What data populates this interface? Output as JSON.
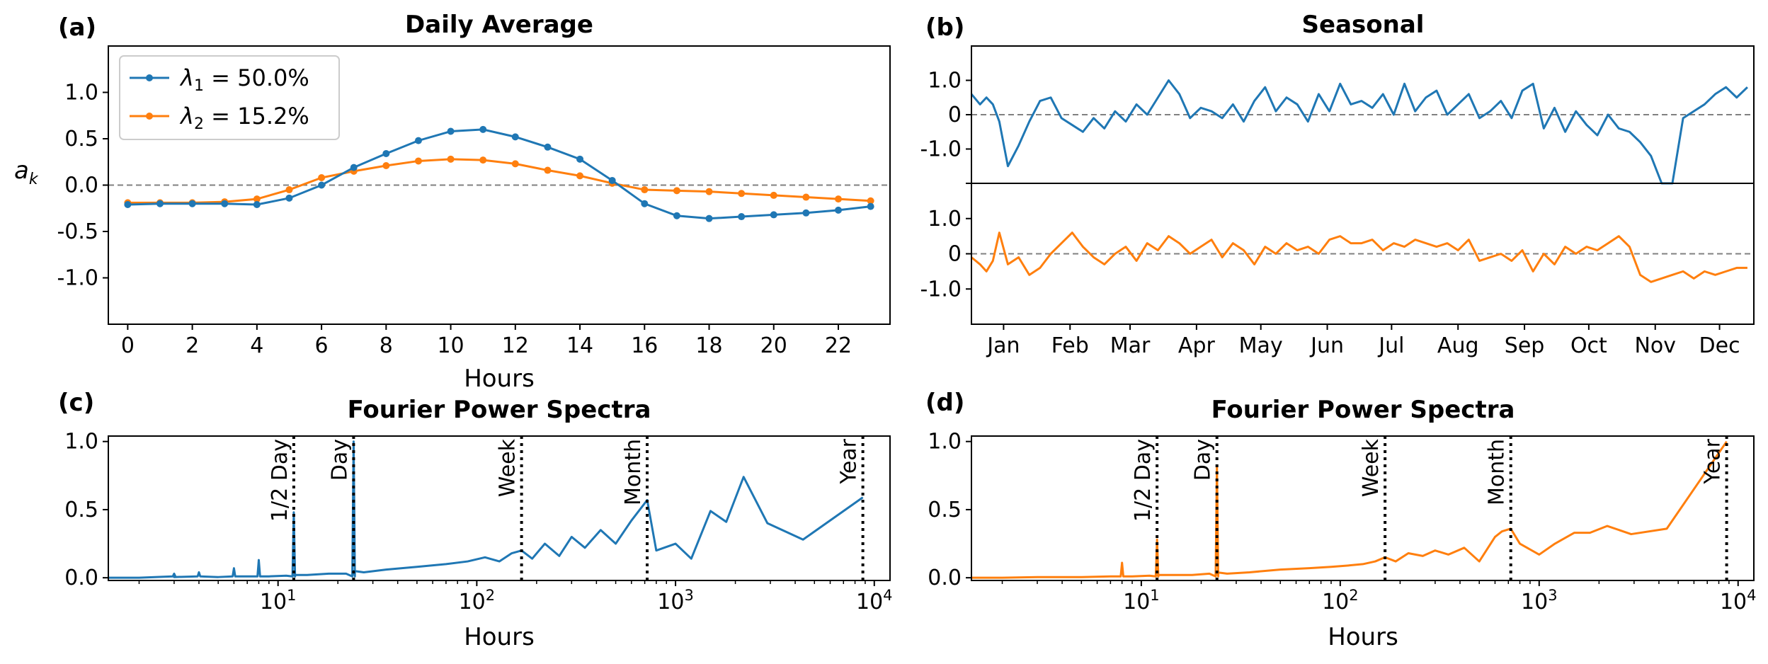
{
  "colors": {
    "c1": "#1f77b4",
    "c2": "#ff7f0e",
    "zero": "#808080"
  },
  "chart_data": [
    {
      "panel": "(a)",
      "type": "line",
      "title": "Daily Average",
      "xlabel": "Hours",
      "ylabel": "a_k",
      "ylabel_main": "a",
      "ylabel_sub": "k",
      "xlim": [
        -0.6,
        23.6
      ],
      "ylim": [
        -1.5,
        1.5
      ],
      "xticks": [
        0,
        2,
        4,
        6,
        8,
        10,
        12,
        14,
        16,
        18,
        20,
        22
      ],
      "xtick_labels": [
        "0",
        "2",
        "4",
        "6",
        "8",
        "10",
        "12",
        "14",
        "16",
        "18",
        "20",
        "22"
      ],
      "yticks": [
        1.0,
        0.5,
        0.0,
        -0.5,
        -1.0
      ],
      "ytick_labels": [
        "1.0",
        "0.5",
        "0.0",
        "-0.5",
        "-1.0"
      ],
      "zero_line": true,
      "legend_position": "top-left",
      "x": [
        0,
        1,
        2,
        3,
        4,
        5,
        6,
        7,
        8,
        9,
        10,
        11,
        12,
        13,
        14,
        15,
        16,
        17,
        18,
        19,
        20,
        21,
        22,
        23
      ],
      "series": [
        {
          "name": "λ1 = 50.0%",
          "legend_sym": "λ",
          "legend_sub": "1",
          "legend_rest": " = 50.0%",
          "values": [
            -0.21,
            -0.2,
            -0.2,
            -0.2,
            -0.21,
            -0.14,
            0.0,
            0.19,
            0.34,
            0.48,
            0.58,
            0.6,
            0.52,
            0.41,
            0.28,
            0.05,
            -0.2,
            -0.33,
            -0.36,
            -0.34,
            -0.32,
            -0.3,
            -0.27,
            -0.23
          ]
        },
        {
          "name": "λ2 = 15.2%",
          "legend_sym": "λ",
          "legend_sub": "2",
          "legend_rest": " = 15.2%",
          "values": [
            -0.19,
            -0.19,
            -0.19,
            -0.18,
            -0.15,
            -0.05,
            0.08,
            0.15,
            0.21,
            0.26,
            0.28,
            0.27,
            0.23,
            0.16,
            0.1,
            0.02,
            -0.05,
            -0.06,
            -0.07,
            -0.09,
            -0.11,
            -0.13,
            -0.15,
            -0.17
          ]
        }
      ]
    },
    {
      "panel": "(b)",
      "type": "line",
      "title": "Seasonal",
      "xlim": [
        0,
        365
      ],
      "month_labels": [
        "Jan",
        "Feb",
        "Mar",
        "Apr",
        "May",
        "Jun",
        "Jul",
        "Aug",
        "Sep",
        "Oct",
        "Nov",
        "Dec"
      ],
      "month_tick_days": [
        15,
        46,
        74,
        105,
        135,
        166,
        196,
        227,
        258,
        288,
        319,
        349
      ],
      "subplots": [
        {
          "ylim": [
            -2.0,
            2.0
          ],
          "yticks": [
            1.0,
            0.0,
            -1.0
          ],
          "ytick_labels": [
            "1.0",
            "0",
            "-1.0"
          ],
          "day": [
            0,
            4,
            7,
            10,
            13,
            17,
            22,
            27,
            32,
            37,
            42,
            47,
            52,
            57,
            62,
            67,
            72,
            77,
            82,
            87,
            92,
            97,
            102,
            107,
            112,
            117,
            122,
            127,
            132,
            137,
            142,
            147,
            152,
            157,
            162,
            167,
            172,
            177,
            182,
            187,
            192,
            197,
            202,
            207,
            212,
            217,
            222,
            227,
            232,
            237,
            242,
            247,
            252,
            257,
            262,
            267,
            272,
            277,
            282,
            287,
            292,
            297,
            302,
            307,
            312,
            317,
            322,
            327,
            332,
            337,
            342,
            347,
            352,
            357,
            362
          ],
          "values": [
            0.6,
            0.3,
            0.5,
            0.3,
            -0.2,
            -1.5,
            -0.9,
            -0.2,
            0.4,
            0.5,
            -0.1,
            -0.3,
            -0.5,
            -0.1,
            -0.4,
            0.1,
            -0.2,
            0.3,
            0.0,
            0.5,
            1.0,
            0.6,
            -0.1,
            0.2,
            0.1,
            -0.1,
            0.3,
            -0.2,
            0.4,
            0.8,
            0.1,
            0.5,
            0.3,
            -0.2,
            0.6,
            0.1,
            0.9,
            0.3,
            0.4,
            0.2,
            0.6,
            0.0,
            0.9,
            0.1,
            0.5,
            0.7,
            0.0,
            0.3,
            0.6,
            -0.1,
            0.1,
            0.4,
            -0.1,
            0.7,
            0.9,
            -0.4,
            0.2,
            -0.5,
            0.1,
            -0.3,
            -0.6,
            0.0,
            -0.4,
            -0.5,
            -0.8,
            -1.2,
            -2.0,
            -2.0,
            -0.1,
            0.1,
            0.3,
            0.6,
            0.8,
            0.5,
            0.8
          ]
        },
        {
          "ylim": [
            -2.0,
            2.0
          ],
          "yticks": [
            1.0,
            0.0,
            -1.0
          ],
          "ytick_labels": [
            "1.0",
            "0",
            "-1.0"
          ],
          "day": [
            0,
            4,
            7,
            10,
            13,
            17,
            22,
            27,
            32,
            37,
            42,
            47,
            52,
            57,
            62,
            67,
            72,
            77,
            82,
            87,
            92,
            97,
            102,
            107,
            112,
            117,
            122,
            127,
            132,
            137,
            142,
            147,
            152,
            157,
            162,
            167,
            172,
            177,
            182,
            187,
            192,
            197,
            202,
            207,
            212,
            217,
            222,
            227,
            232,
            237,
            242,
            247,
            252,
            257,
            262,
            267,
            272,
            277,
            282,
            287,
            292,
            297,
            302,
            307,
            312,
            317,
            322,
            327,
            332,
            337,
            342,
            347,
            352,
            357,
            362
          ],
          "values": [
            -0.1,
            -0.3,
            -0.5,
            -0.2,
            0.6,
            -0.3,
            -0.1,
            -0.6,
            -0.4,
            0.0,
            0.3,
            0.6,
            0.2,
            -0.1,
            -0.3,
            0.0,
            0.2,
            -0.2,
            0.3,
            0.1,
            0.5,
            0.3,
            0.0,
            0.2,
            0.4,
            -0.1,
            0.3,
            0.1,
            -0.3,
            0.2,
            0.0,
            0.3,
            0.1,
            0.2,
            0.0,
            0.4,
            0.5,
            0.3,
            0.3,
            0.4,
            0.1,
            0.3,
            0.2,
            0.4,
            0.3,
            0.2,
            0.3,
            0.1,
            0.4,
            -0.2,
            -0.1,
            0.0,
            -0.2,
            0.1,
            -0.5,
            0.0,
            -0.3,
            0.2,
            0.0,
            0.2,
            0.1,
            0.3,
            0.5,
            0.2,
            -0.6,
            -0.8,
            -0.7,
            -0.6,
            -0.5,
            -0.7,
            -0.5,
            -0.6,
            -0.5,
            -0.4,
            -0.4
          ]
        }
      ]
    },
    {
      "panel": "(c)",
      "type": "line",
      "title": "Fourier Power Spectra",
      "xlabel": "Hours",
      "xscale": "log",
      "xlim": [
        1.4,
        12000
      ],
      "ylim": [
        -0.02,
        1.04
      ],
      "xticks": [
        10,
        100,
        1000,
        10000
      ],
      "xtick_base": "10",
      "xtick_exps": [
        "1",
        "2",
        "3",
        "4"
      ],
      "yticks": [
        0.0,
        0.5,
        1.0
      ],
      "ytick_labels": [
        "0.0",
        "0.5",
        "1.0"
      ],
      "vlines": [
        {
          "label": "1/2 Day",
          "x": 12
        },
        {
          "label": "Day",
          "x": 24
        },
        {
          "label": "Week",
          "x": 168
        },
        {
          "label": "Month",
          "x": 720
        },
        {
          "label": "Year",
          "x": 8760
        }
      ],
      "spikes": [
        [
          3,
          0.03
        ],
        [
          4,
          0.04
        ],
        [
          6,
          0.07
        ],
        [
          8,
          0.13
        ],
        [
          12,
          0.48
        ],
        [
          24,
          1.0
        ]
      ],
      "x": [
        2,
        3,
        5,
        7,
        9,
        11,
        12,
        14,
        18,
        22,
        24,
        27,
        35,
        50,
        70,
        90,
        110,
        130,
        150,
        168,
        190,
        220,
        260,
        300,
        350,
        420,
        500,
        600,
        720,
        800,
        1000,
        1200,
        1500,
        1800,
        2200,
        2900,
        4380,
        8760
      ],
      "values": [
        0.0,
        0.005,
        0.005,
        0.01,
        0.01,
        0.015,
        0.02,
        0.02,
        0.03,
        0.03,
        0.05,
        0.04,
        0.06,
        0.08,
        0.1,
        0.12,
        0.15,
        0.12,
        0.18,
        0.2,
        0.14,
        0.25,
        0.16,
        0.3,
        0.22,
        0.35,
        0.25,
        0.42,
        0.57,
        0.2,
        0.25,
        0.14,
        0.49,
        0.41,
        0.74,
        0.4,
        0.28,
        0.59
      ]
    },
    {
      "panel": "(d)",
      "type": "line",
      "title": "Fourier Power Spectra",
      "xlabel": "Hours",
      "xscale": "log",
      "xlim": [
        1.4,
        12000
      ],
      "ylim": [
        -0.02,
        1.04
      ],
      "xticks": [
        10,
        100,
        1000,
        10000
      ],
      "xtick_base": "10",
      "xtick_exps": [
        "1",
        "2",
        "3",
        "4"
      ],
      "yticks": [
        0.0,
        0.5,
        1.0
      ],
      "ytick_labels": [
        "0.0",
        "0.5",
        "1.0"
      ],
      "vlines": [
        {
          "label": "1/2 Day",
          "x": 12
        },
        {
          "label": "Day",
          "x": 24
        },
        {
          "label": "Week",
          "x": 168
        },
        {
          "label": "Month",
          "x": 720
        },
        {
          "label": "Year",
          "x": 8760
        }
      ],
      "spikes": [
        [
          8,
          0.11
        ],
        [
          12,
          0.28
        ],
        [
          24,
          0.82
        ]
      ],
      "x": [
        2,
        3,
        5,
        7,
        9,
        11,
        12,
        14,
        18,
        22,
        24,
        27,
        35,
        50,
        70,
        90,
        110,
        130,
        150,
        168,
        190,
        220,
        260,
        300,
        350,
        420,
        500,
        600,
        650,
        720,
        800,
        1000,
        1200,
        1500,
        1800,
        2200,
        2900,
        4380,
        8760
      ],
      "values": [
        0.0,
        0.005,
        0.005,
        0.01,
        0.01,
        0.015,
        0.02,
        0.02,
        0.02,
        0.03,
        0.04,
        0.03,
        0.04,
        0.06,
        0.07,
        0.08,
        0.09,
        0.1,
        0.12,
        0.15,
        0.12,
        0.18,
        0.16,
        0.2,
        0.17,
        0.22,
        0.12,
        0.3,
        0.34,
        0.36,
        0.25,
        0.17,
        0.25,
        0.33,
        0.33,
        0.38,
        0.32,
        0.36,
        1.0
      ]
    }
  ]
}
